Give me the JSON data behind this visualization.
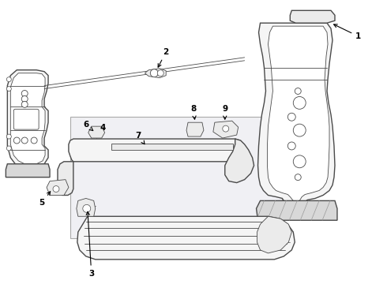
{
  "background_color": "#ffffff",
  "line_color": "#4a4a4a",
  "fill_light": "#f5f5f5",
  "fill_mid": "#ebebeb",
  "fill_dark": "#d8d8d8",
  "box_fill": "#f0f0f4",
  "box_edge": "#aaaaaa",
  "figsize": [
    4.9,
    3.6
  ],
  "dpi": 100
}
